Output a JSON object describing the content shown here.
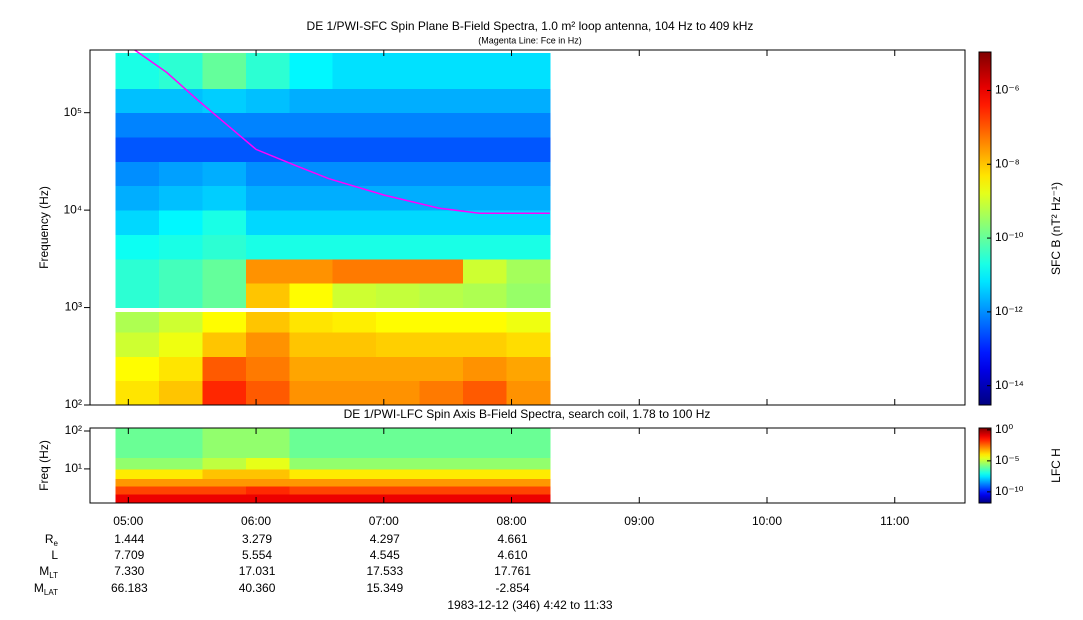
{
  "chart_data": [
    {
      "type": "heatmap",
      "title": "DE 1/PWI-SFC  Spin Plane B-Field Spectra, 1.0 m² loop antenna, 104 Hz to 409 kHz",
      "subtitle": "(Magenta Line: Fce in Hz)",
      "y_label": "Frequency (Hz)",
      "y_log": true,
      "xlim": [
        4.7,
        11.55
      ],
      "ylim": [
        100,
        440000
      ],
      "yticks": [
        {
          "value": 100,
          "label": "10²"
        },
        {
          "value": 1000,
          "label": "10³"
        },
        {
          "value": 10000,
          "label": "10⁴"
        },
        {
          "value": 100000,
          "label": "10⁵"
        }
      ],
      "x_bins": [
        4.9,
        5.24,
        5.58,
        5.92,
        6.26,
        6.6,
        6.94,
        7.28,
        7.62,
        7.96,
        8.3
      ],
      "y_bins": [
        100,
        178,
        316,
        562,
        900,
        1000,
        1780,
        3160,
        5620,
        10000,
        17800,
        31600,
        56200,
        100000,
        178000,
        409000
      ],
      "values": [
        [
          5e-09,
          1e-08,
          3e-07,
          1e-07,
          3e-08,
          3e-08,
          3e-08,
          5e-08,
          1e-07,
          3e-08
        ],
        [
          3e-09,
          5e-09,
          1e-07,
          5e-08,
          2e-08,
          2e-08,
          2e-08,
          2e-08,
          3e-08,
          2e-08
        ],
        [
          1e-09,
          2e-09,
          1e-08,
          3e-08,
          1e-08,
          1e-08,
          8e-09,
          8e-09,
          8e-09,
          6e-09
        ],
        [
          5e-10,
          1e-09,
          3e-09,
          1e-08,
          5e-09,
          4e-09,
          3e-09,
          3e-09,
          3e-09,
          2e-09
        ],
        [
          null,
          null,
          null,
          null,
          null,
          null,
          null,
          null,
          null,
          null
        ],
        [
          3e-11,
          5e-11,
          1e-10,
          1e-08,
          3e-09,
          1e-09,
          8e-10,
          6e-10,
          5e-10,
          3e-10
        ],
        [
          3e-11,
          5e-11,
          1e-10,
          3e-08,
          3e-08,
          5e-08,
          5e-08,
          5e-08,
          1e-09,
          4e-10
        ],
        [
          1.5e-11,
          2e-11,
          3e-11,
          2e-11,
          2e-11,
          2e-11,
          2e-11,
          2e-11,
          2e-11,
          2e-11
        ],
        [
          5e-12,
          1e-11,
          2e-11,
          5e-12,
          5e-12,
          5e-12,
          5e-12,
          5e-12,
          5e-12,
          5e-12
        ],
        [
          2e-12,
          3e-12,
          4e-12,
          2e-12,
          2e-12,
          2e-12,
          2e-12,
          2e-12,
          2e-12,
          2e-12
        ],
        [
          1e-12,
          1.5e-12,
          2e-12,
          1e-12,
          1e-12,
          1e-12,
          1e-12,
          1e-12,
          1e-12,
          1e-12
        ],
        [
          3e-13,
          3e-13,
          3e-13,
          3e-13,
          3e-13,
          3e-13,
          3e-13,
          3e-13,
          3e-13,
          3e-13
        ],
        [
          8e-13,
          8e-13,
          8e-13,
          8e-13,
          8e-13,
          8e-13,
          8e-13,
          8e-13,
          8e-13,
          8e-13
        ],
        [
          3e-12,
          3e-12,
          4e-12,
          3e-12,
          2e-12,
          2e-12,
          2e-12,
          2e-12,
          2e-12,
          2e-12
        ],
        [
          2e-11,
          3e-11,
          1e-10,
          3e-11,
          1e-11,
          6e-12,
          6e-12,
          6e-12,
          6e-12,
          6e-12
        ]
      ],
      "colormap": "jet",
      "zlim": [
        3e-15,
        1.1e-05
      ],
      "zticks": [
        {
          "value": 1e-06,
          "label": "10⁻⁶"
        },
        {
          "value": 1e-08,
          "label": "10⁻⁸"
        },
        {
          "value": 1e-10,
          "label": "10⁻¹⁰"
        },
        {
          "value": 1e-12,
          "label": "10⁻¹²"
        },
        {
          "value": 1e-14,
          "label": "10⁻¹⁴"
        }
      ],
      "zlabel": "SFC B (nT² Hz⁻¹)",
      "fce": {
        "color": "#ff00ff",
        "x": [
          5.05,
          5.3,
          5.54,
          6.0,
          6.3,
          6.57,
          7.0,
          7.43,
          7.75,
          8.3
        ],
        "values": [
          440000,
          260000,
          136000,
          42000,
          29000,
          21000,
          14300,
          10500,
          9300,
          9300
        ]
      }
    },
    {
      "type": "heatmap",
      "title": "DE 1/PWI-LFC  Spin Axis B-Field Spectra, search coil, 1.78 to 100 Hz",
      "y_label": "Freq (Hz)",
      "y_log": true,
      "xlim": [
        4.7,
        11.55
      ],
      "xticks": [
        {
          "value": 5,
          "label": "05:00"
        },
        {
          "value": 6,
          "label": "06:00"
        },
        {
          "value": 7,
          "label": "07:00"
        },
        {
          "value": 8,
          "label": "08:00"
        },
        {
          "value": 9,
          "label": "09:00"
        },
        {
          "value": 10,
          "label": "10:00"
        },
        {
          "value": 11,
          "label": "11:00"
        }
      ],
      "ylim": [
        1.26,
        120
      ],
      "yticks": [
        {
          "value": 100,
          "label": "10²"
        },
        {
          "value": 10,
          "label": "10¹"
        }
      ],
      "x_bins": [
        4.9,
        5.24,
        5.58,
        5.92,
        6.26,
        6.6,
        6.94,
        7.28,
        7.62,
        7.96,
        8.3
      ],
      "y_bins": [
        1.26,
        2.2,
        3.5,
        5.6,
        10,
        20,
        120
      ],
      "values": [
        [
          0.1,
          0.1,
          0.1,
          0.1,
          0.1,
          0.1,
          0.1,
          0.1,
          0.1,
          0.1
        ],
        [
          0.01,
          0.01,
          0.01,
          0.02,
          0.01,
          0.01,
          0.01,
          0.01,
          0.01,
          0.01
        ],
        [
          0.001,
          0.001,
          0.001,
          0.001,
          0.001,
          0.001,
          0.001,
          0.001,
          0.001,
          0.001
        ],
        [
          0.0001,
          0.0001,
          0.0003,
          0.0003,
          0.0001,
          0.0001,
          0.0001,
          0.0001,
          0.0001,
          0.0001
        ],
        [
          3e-06,
          3e-06,
          1e-05,
          3e-05,
          3e-06,
          3e-06,
          3e-06,
          3e-06,
          3e-06,
          3e-06
        ],
        [
          1e-06,
          1e-06,
          3e-06,
          3e-06,
          1e-06,
          1e-06,
          1e-06,
          1e-06,
          1e-06,
          1e-06
        ]
      ],
      "colormap": "jet",
      "zlim": [
        1.6e-12,
        2
      ],
      "zticks": [
        {
          "value": 1,
          "label": "10⁰"
        },
        {
          "value": 1e-05,
          "label": "10⁻⁵"
        },
        {
          "value": 1e-10,
          "label": "10⁻¹⁰"
        }
      ],
      "zlabel": "LFC H"
    }
  ],
  "ephemeris": {
    "rows": [
      {
        "label": "R",
        "sub": "e",
        "values": [
          "1.444",
          "3.279",
          "4.297",
          "4.661"
        ]
      },
      {
        "label": "L",
        "values": [
          "7.709",
          "5.554",
          "4.545",
          "4.610"
        ]
      },
      {
        "label": "M",
        "sub": "LT",
        "values": [
          "7.330",
          "17.031",
          "17.533",
          "17.761"
        ]
      },
      {
        "label": "M",
        "sub": "LAT",
        "values": [
          "66.183",
          "40.360",
          "15.349",
          "-2.854"
        ]
      }
    ]
  },
  "footer": "1983-12-12 (346) 4:42 to 11:33"
}
